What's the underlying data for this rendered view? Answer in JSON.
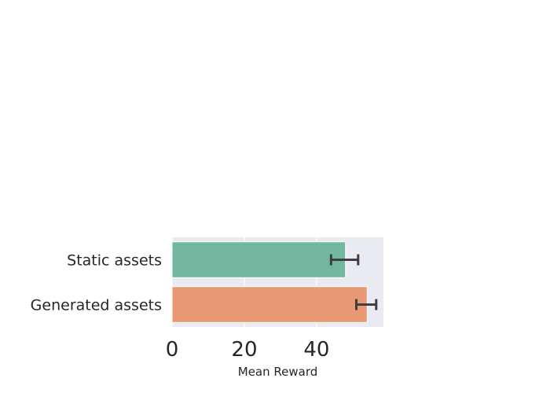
{
  "chart_data": {
    "type": "bar",
    "orientation": "horizontal",
    "categories": [
      "Static assets",
      "Generated assets"
    ],
    "values": [
      48,
      54
    ],
    "error": [
      [
        44,
        51.5
      ],
      [
        51,
        56.5
      ]
    ],
    "colors": [
      "#73b7a0",
      "#ea9874"
    ],
    "xlabel": "Mean Reward",
    "ylabel": "",
    "xticks": [
      0,
      20,
      40
    ],
    "xlim": [
      0,
      58.5
    ],
    "grid": true,
    "background": "#eaeaf2"
  }
}
